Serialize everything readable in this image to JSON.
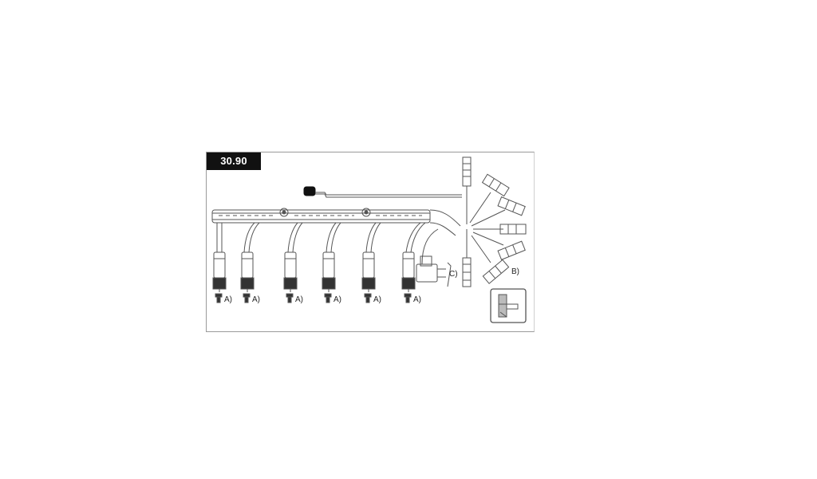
{
  "part_number": "30.90",
  "labels": {
    "a": "A)",
    "b": "B)",
    "c": "C)"
  },
  "colors": {
    "badge_bg": "#111111",
    "badge_text": "#ffffff",
    "line": "#555555",
    "frame": "#9a9a9a"
  }
}
